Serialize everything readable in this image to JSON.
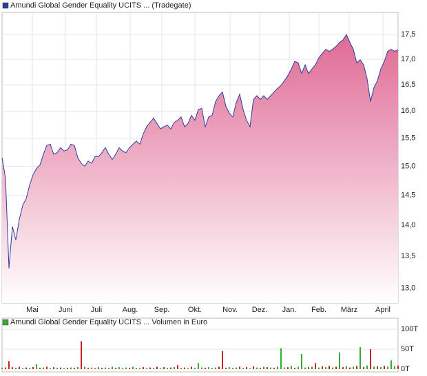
{
  "chart_data": [
    {
      "type": "area",
      "log_scale": true,
      "grid": true,
      "series": [
        {
          "name": "Amundi Global Gender Equality UCITS ... (Tradegate)",
          "color": "#2b3ea0",
          "fill_color": "#e06a94",
          "values": [
            15.15,
            14.79,
            13.31,
            13.98,
            13.76,
            14.09,
            14.33,
            14.44,
            14.67,
            14.85,
            14.96,
            15.02,
            15.21,
            15.37,
            15.39,
            15.21,
            15.24,
            15.33,
            15.27,
            15.29,
            15.39,
            15.37,
            15.15,
            15.05,
            15.0,
            15.09,
            15.05,
            15.17,
            15.17,
            15.24,
            15.33,
            15.21,
            15.12,
            15.21,
            15.33,
            15.27,
            15.24,
            15.33,
            15.39,
            15.45,
            15.39,
            15.58,
            15.71,
            15.79,
            15.87,
            15.77,
            15.67,
            15.71,
            15.74,
            15.67,
            15.79,
            15.83,
            15.89,
            15.71,
            15.77,
            15.92,
            15.83,
            16.03,
            16.05,
            15.71,
            15.89,
            15.92,
            16.18,
            16.29,
            16.36,
            16.09,
            15.96,
            15.89,
            16.16,
            16.32,
            16.03,
            15.83,
            15.71,
            16.22,
            16.29,
            16.22,
            16.29,
            16.22,
            16.29,
            16.36,
            16.43,
            16.49,
            16.58,
            16.68,
            16.81,
            16.96,
            16.93,
            16.72,
            16.89,
            16.72,
            16.81,
            16.89,
            17.03,
            17.12,
            17.2,
            17.16,
            17.2,
            17.26,
            17.34,
            17.39,
            17.5,
            17.34,
            17.2,
            16.93,
            16.99,
            16.89,
            16.62,
            16.18,
            16.45,
            16.58,
            16.81,
            16.96,
            17.16,
            17.2,
            17.16,
            17.19
          ]
        }
      ],
      "xlim": [
        0,
        115
      ],
      "xticks": [
        {
          "value": 8.8,
          "label": "Mai"
        },
        {
          "value": 18.4,
          "label": "Juni"
        },
        {
          "value": 27.4,
          "label": "Juli"
        },
        {
          "value": 37.2,
          "label": "Aug."
        },
        {
          "value": 46.4,
          "label": "Sep."
        },
        {
          "value": 56,
          "label": "Okt."
        },
        {
          "value": 66.2,
          "label": "Nov."
        },
        {
          "value": 74.8,
          "label": "Dez."
        },
        {
          "value": 83.4,
          "label": "Jan."
        },
        {
          "value": 92,
          "label": "Feb."
        },
        {
          "value": 100.8,
          "label": "März"
        },
        {
          "value": 110.6,
          "label": "April"
        }
      ],
      "ylim": [
        12.78,
        17.96
      ],
      "yticks": [
        {
          "value": 13,
          "label": "13,0"
        },
        {
          "value": 13.5,
          "label": "13,5"
        },
        {
          "value": 14,
          "label": "14,0"
        },
        {
          "value": 14.5,
          "label": "14,5"
        },
        {
          "value": 15,
          "label": "15,0"
        },
        {
          "value": 15.5,
          "label": "15,5"
        },
        {
          "value": 16,
          "label": "16,0"
        },
        {
          "value": 16.5,
          "label": "16,5"
        },
        {
          "value": 17,
          "label": "17,0"
        },
        {
          "value": 17.5,
          "label": "17,5"
        }
      ]
    },
    {
      "type": "bar",
      "grid": true,
      "series": [
        {
          "name": "Amundi Global Gender Equality UCITS ... Volumen in Euro",
          "color": "#3a3",
          "values": [
            3,
            4,
            20,
            5,
            3,
            6,
            2,
            4,
            3,
            5,
            12,
            3,
            4,
            6,
            2,
            5,
            3,
            4,
            2,
            3,
            4,
            3,
            5,
            70,
            6,
            3,
            4,
            2,
            5,
            3,
            4,
            2,
            6,
            3,
            5,
            2,
            4,
            3,
            6,
            2,
            3,
            5,
            2,
            4,
            3,
            6,
            2,
            5,
            3,
            4,
            5,
            10,
            3,
            4,
            2,
            6,
            3,
            15,
            4,
            3,
            5,
            2,
            4,
            6,
            45,
            3,
            5,
            2,
            4,
            6,
            3,
            5,
            2,
            7,
            4,
            3,
            6,
            5,
            4,
            3,
            6,
            52,
            4,
            5,
            8,
            3,
            6,
            38,
            4,
            5,
            6,
            15,
            4,
            7,
            5,
            8,
            4,
            6,
            42,
            5,
            7,
            4,
            6,
            8,
            55,
            5,
            9,
            50,
            6,
            7,
            5,
            8,
            6,
            22,
            7,
            9
          ],
          "colors": [
            "#3a3",
            "#c22",
            "#c22",
            "#c22",
            "#3a3",
            "#c22",
            "#3a3",
            "#c22",
            "#3a3",
            "#c22",
            "#3a3",
            "#c22",
            "#3a3",
            "#c22",
            "#3a3",
            "#c22",
            "#3a3",
            "#c22",
            "#3a3",
            "#c22",
            "#3a3",
            "#c22",
            "#3a3",
            "#c22",
            "#3a3",
            "#c22",
            "#3a3",
            "#c22",
            "#3a3",
            "#c22",
            "#3a3",
            "#c22",
            "#3a3",
            "#c22",
            "#3a3",
            "#c22",
            "#3a3",
            "#c22",
            "#3a3",
            "#c22",
            "#3a3",
            "#c22",
            "#3a3",
            "#c22",
            "#3a3",
            "#c22",
            "#3a3",
            "#c22",
            "#3a3",
            "#c22",
            "#3a3",
            "#c22",
            "#3a3",
            "#c22",
            "#3a3",
            "#c22",
            "#3a3",
            "#3a3",
            "#3a3",
            "#c22",
            "#3a3",
            "#c22",
            "#3a3",
            "#c22",
            "#c22",
            "#c22",
            "#3a3",
            "#c22",
            "#3a3",
            "#c22",
            "#3a3",
            "#c22",
            "#3a3",
            "#c22",
            "#3a3",
            "#c22",
            "#3a3",
            "#c22",
            "#3a3",
            "#c22",
            "#3a3",
            "#3a3",
            "#3a3",
            "#c22",
            "#3a3",
            "#c22",
            "#3a3",
            "#3a3",
            "#3a3",
            "#c22",
            "#3a3",
            "#c22",
            "#3a3",
            "#c22",
            "#3a3",
            "#c22",
            "#3a3",
            "#c22",
            "#3a3",
            "#c22",
            "#3a3",
            "#c22",
            "#3a3",
            "#c22",
            "#3a3",
            "#c22",
            "#3a3",
            "#c22",
            "#3a3",
            "#c22",
            "#3a3",
            "#c22",
            "#3a3",
            "#3a3",
            "#3a3",
            "#c22"
          ]
        }
      ],
      "xlim": [
        0,
        115
      ],
      "ylim": [
        -7,
        128
      ],
      "yticks": [
        {
          "value": 0,
          "label": "0T"
        },
        {
          "value": 50,
          "label": "50T"
        },
        {
          "value": 100,
          "label": "100T"
        }
      ]
    }
  ]
}
